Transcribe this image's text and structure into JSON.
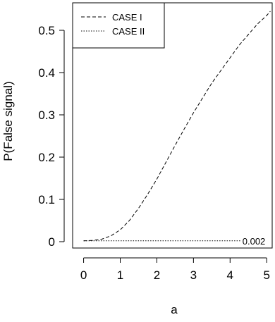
{
  "chart_data": {
    "type": "line",
    "xlabel": "a",
    "ylabel": "P(False signal)",
    "xlim": [
      -0.3,
      5.15
    ],
    "ylim": [
      -0.015,
      0.565
    ],
    "xticks": [
      0,
      1,
      2,
      3,
      4,
      5
    ],
    "yticks": [
      0,
      0.1,
      0.2,
      0.3,
      0.4,
      0.5
    ],
    "x_tick_labels": [
      "0",
      "1",
      "2",
      "3",
      "4",
      "5"
    ],
    "y_tick_labels": [
      "0",
      "0.1",
      "0.2",
      "0.3",
      "0.4",
      "0.5"
    ],
    "legend_position": "top-left",
    "series": [
      {
        "name": "CASE I",
        "line_style": "dashed",
        "x": [
          0,
          0.25,
          0.5,
          0.75,
          1.0,
          1.25,
          1.5,
          1.75,
          2.0,
          2.25,
          2.5,
          2.75,
          3.0,
          3.25,
          3.5,
          3.75,
          4.0,
          4.25,
          4.5,
          4.75,
          5.0,
          5.1
        ],
        "y": [
          0.002,
          0.003,
          0.006,
          0.014,
          0.028,
          0.05,
          0.079,
          0.112,
          0.148,
          0.188,
          0.228,
          0.267,
          0.305,
          0.34,
          0.375,
          0.405,
          0.435,
          0.465,
          0.49,
          0.515,
          0.535,
          0.545
        ]
      },
      {
        "name": "CASE II",
        "line_style": "dotted",
        "x": [
          0,
          4.3
        ],
        "y": [
          0.002,
          0.002
        ]
      }
    ],
    "annotations": [
      {
        "text": "0.002",
        "x": 4.65,
        "y": 0.002
      }
    ]
  }
}
